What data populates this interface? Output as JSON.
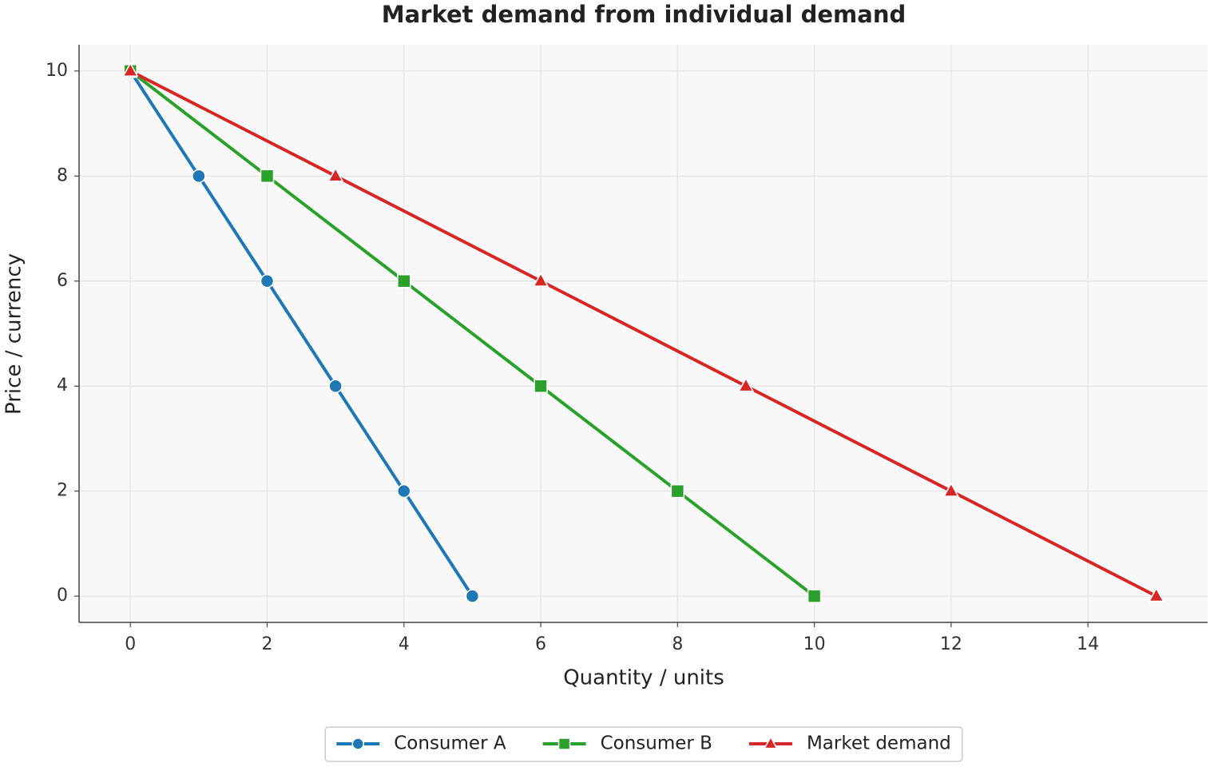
{
  "chart_data": {
    "type": "line",
    "title": "Market demand from individual demand",
    "x_label": "Quantity / units",
    "y_label": "Price / currency",
    "series": [
      {
        "name": "Consumer A",
        "color": "#1f77b4",
        "marker": "circle",
        "x": [
          0,
          1,
          2,
          3,
          4,
          5
        ],
        "values": [
          10,
          8,
          6,
          4,
          2,
          0
        ]
      },
      {
        "name": "Consumer B",
        "color": "#2ca02c",
        "marker": "square",
        "x": [
          0,
          2,
          4,
          6,
          8,
          10
        ],
        "values": [
          10,
          8,
          6,
          4,
          2,
          0
        ]
      },
      {
        "name": "Market demand",
        "color": "#d62728",
        "marker": "triangle",
        "x": [
          0,
          3,
          6,
          9,
          12,
          15
        ],
        "values": [
          10,
          8,
          6,
          4,
          2,
          0
        ]
      }
    ],
    "xlim": [
      -0.75,
      15.75
    ],
    "ylim": [
      -0.5,
      10.5
    ],
    "xticks": [
      0,
      2,
      4,
      6,
      8,
      10,
      12,
      14
    ],
    "yticks": [
      0,
      2,
      4,
      6,
      8,
      10
    ],
    "grid": true,
    "legend": "bottom"
  }
}
